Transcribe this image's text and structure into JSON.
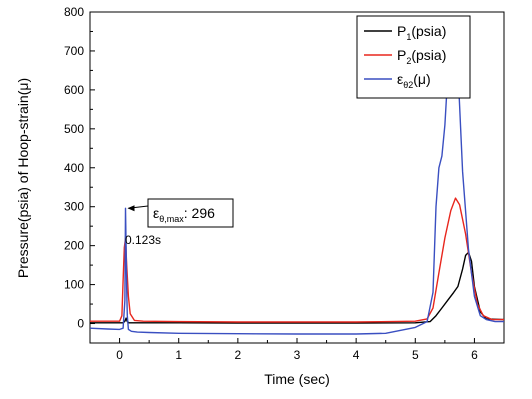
{
  "chart_data": {
    "type": "line",
    "xlabel": "Time (sec)",
    "ylabel": "Pressure(psia) of Hoop-strain(μ)",
    "xlim": [
      -0.5,
      6.5
    ],
    "ylim": [
      -50,
      800
    ],
    "xticks": [
      0,
      1,
      2,
      3,
      4,
      5,
      6
    ],
    "yticks": [
      0,
      100,
      200,
      300,
      400,
      500,
      600,
      700,
      800
    ],
    "grid": false,
    "legend_position": "top-right",
    "series": [
      {
        "name": "P1(psia)",
        "legend": {
          "base": "P",
          "sub": "1",
          "suffix": "(psia)"
        },
        "color": "#000000",
        "x": [
          -0.5,
          0.0,
          0.06,
          0.09,
          0.11,
          0.13,
          0.16,
          0.2,
          0.3,
          1.0,
          2.0,
          3.0,
          4.0,
          5.0,
          5.25,
          5.35,
          5.45,
          5.55,
          5.65,
          5.72,
          5.8,
          5.85,
          5.9,
          5.95,
          6.0,
          6.1,
          6.2,
          6.5
        ],
        "y": [
          2,
          2,
          2,
          6,
          14,
          5,
          2,
          2,
          2,
          2,
          1,
          1,
          1,
          2,
          5,
          20,
          40,
          60,
          80,
          95,
          140,
          175,
          183,
          160,
          95,
          30,
          12,
          10
        ]
      },
      {
        "name": "P2(psia)",
        "legend": {
          "base": "P",
          "sub": "2",
          "suffix": "(psia)"
        },
        "color": "#e8261d",
        "x": [
          -0.5,
          0.0,
          0.04,
          0.06,
          0.08,
          0.1,
          0.12,
          0.15,
          0.18,
          0.25,
          0.4,
          1.0,
          2.0,
          3.0,
          4.0,
          5.0,
          5.2,
          5.3,
          5.4,
          5.5,
          5.6,
          5.68,
          5.75,
          5.85,
          5.95,
          6.05,
          6.15,
          6.3,
          6.5
        ],
        "y": [
          6,
          6,
          20,
          110,
          195,
          218,
          150,
          70,
          25,
          8,
          6,
          5,
          4,
          4,
          4,
          6,
          12,
          40,
          130,
          220,
          290,
          322,
          305,
          230,
          130,
          50,
          20,
          10,
          10
        ],
        "annotation": "0.123s"
      },
      {
        "name": "εθ2(μ)",
        "legend": {
          "base": "ε",
          "sub": "θ2",
          "suffix": "(μ)"
        },
        "color": "#3a4fc1",
        "x": [
          -0.5,
          -0.2,
          0.0,
          0.06,
          0.09,
          0.1,
          0.11,
          0.12,
          0.13,
          0.15,
          0.2,
          0.3,
          0.5,
          1.0,
          2.0,
          3.0,
          4.0,
          4.5,
          5.0,
          5.2,
          5.3,
          5.35,
          5.4,
          5.45,
          5.5,
          5.55,
          5.6,
          5.65,
          5.7,
          5.75,
          5.8,
          5.9,
          6.0,
          6.1,
          6.2,
          6.35,
          6.5
        ],
        "y": [
          -12,
          -14,
          -15,
          -12,
          60,
          296,
          200,
          90,
          20,
          -15,
          -20,
          -22,
          -23,
          -25,
          -26,
          -27,
          -27,
          -25,
          -10,
          5,
          80,
          300,
          400,
          430,
          510,
          640,
          730,
          750,
          720,
          560,
          390,
          190,
          70,
          20,
          10,
          5,
          5
        ],
        "annotation": {
          "label": "ε",
          "sub": "θ,max",
          "value": ": 296"
        }
      }
    ]
  }
}
